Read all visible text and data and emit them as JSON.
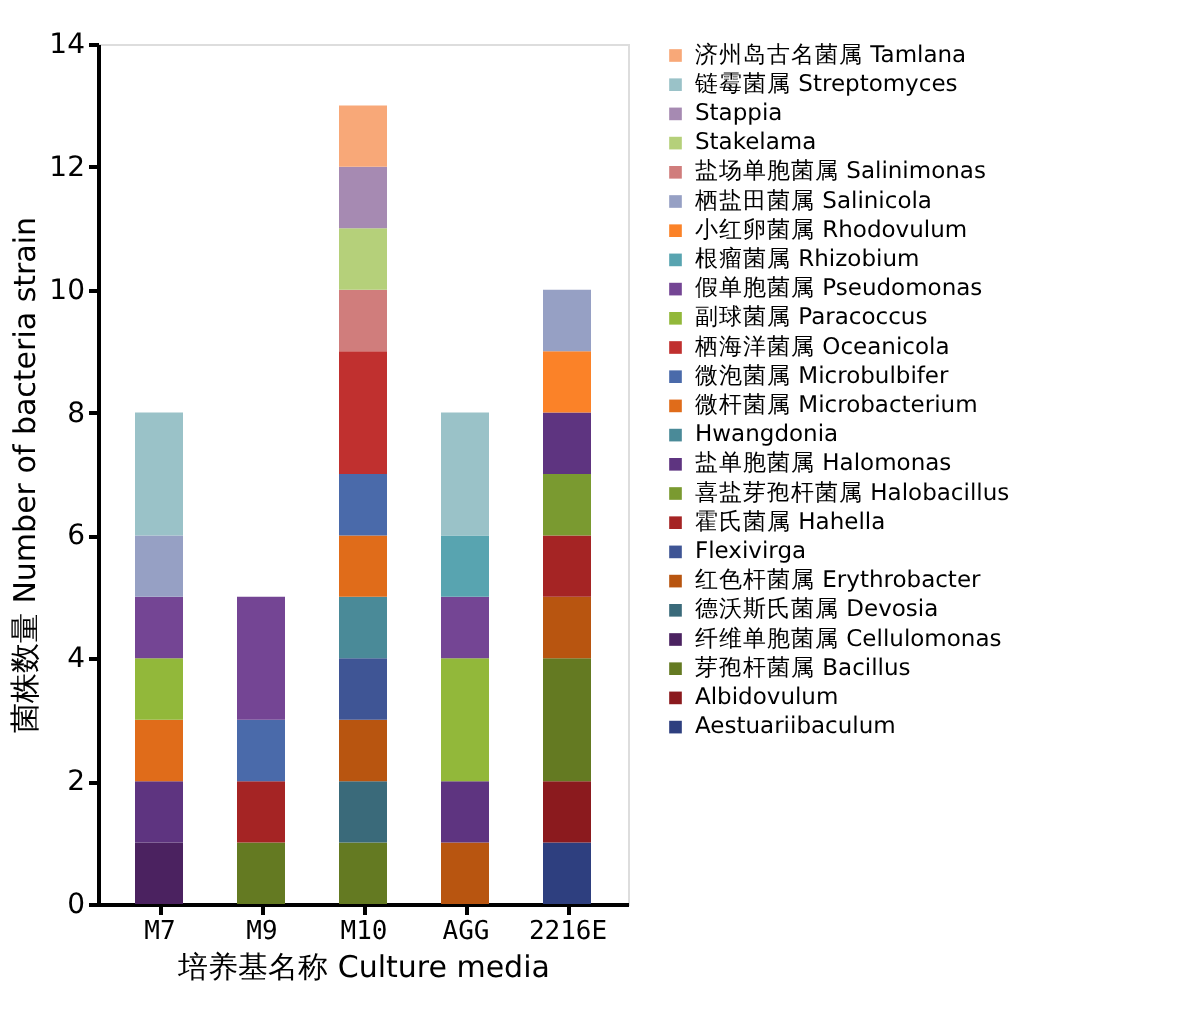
{
  "chart_data": {
    "type": "bar",
    "stacked": true,
    "xlabel": "培养基名称 Culture media",
    "ylabel": "菌株数量 Number of bacteria strain",
    "categories": [
      "M7",
      "M9",
      "M10",
      "AGG",
      "2216E"
    ],
    "ylim": [
      0,
      14
    ],
    "yticks": [
      0,
      2,
      4,
      6,
      8,
      10,
      12,
      14
    ],
    "grid": false,
    "legend": "right",
    "series": [
      {
        "name": "Aestuariibaculum",
        "color": "#2e3f7f",
        "values": [
          null,
          null,
          null,
          null,
          1
        ]
      },
      {
        "name": "Albidovulum",
        "color": "#8b1a1e",
        "values": [
          null,
          null,
          null,
          null,
          1
        ]
      },
      {
        "name": "芽孢杆菌属 Bacillus",
        "color": "#647a22",
        "values": [
          null,
          1,
          1,
          null,
          2
        ]
      },
      {
        "name": "纤维单胞菌属 Cellulomonas",
        "color": "#4b2260",
        "values": [
          1,
          null,
          null,
          null,
          null
        ]
      },
      {
        "name": "德沃斯氏菌属 Devosia",
        "color": "#3a6a7a",
        "values": [
          null,
          null,
          1,
          null,
          null
        ]
      },
      {
        "name": "红色杆菌属 Erythrobacter",
        "color": "#b85510",
        "values": [
          null,
          null,
          1,
          1,
          1
        ]
      },
      {
        "name": "Flexivirga",
        "color": "#3f5595",
        "values": [
          null,
          null,
          1,
          null,
          null
        ]
      },
      {
        "name": "霍氏菌属  Hahella",
        "color": "#a52424",
        "values": [
          null,
          1,
          null,
          null,
          1
        ]
      },
      {
        "name": "喜盐芽孢杆菌属 Halobacillus",
        "color": "#7a9a30",
        "values": [
          null,
          null,
          null,
          null,
          1
        ]
      },
      {
        "name": "盐单胞菌属 Halomonas",
        "color": "#5e3480",
        "values": [
          1,
          null,
          null,
          1,
          1
        ]
      },
      {
        "name": "Hwangdonia",
        "color": "#4a8a98",
        "values": [
          null,
          null,
          1,
          null,
          null
        ]
      },
      {
        "name": "微杆菌属 Microbacterium",
        "color": "#e06c1a",
        "values": [
          1,
          null,
          1,
          null,
          null
        ]
      },
      {
        "name": "微泡菌属 Microbulbifer",
        "color": "#4a6aaa",
        "values": [
          null,
          1,
          1,
          null,
          null
        ]
      },
      {
        "name": "栖海洋菌属 Oceanicola",
        "color": "#c0302f",
        "values": [
          null,
          null,
          2,
          null,
          null
        ]
      },
      {
        "name": "副球菌属 Paracoccus",
        "color": "#92b83a",
        "values": [
          1,
          null,
          null,
          2,
          null
        ]
      },
      {
        "name": "假单胞菌属 Pseudomonas",
        "color": "#744594",
        "values": [
          1,
          2,
          null,
          1,
          null
        ]
      },
      {
        "name": "根瘤菌属 Rhizobium",
        "color": "#58a4b0",
        "values": [
          null,
          null,
          null,
          1,
          null
        ]
      },
      {
        "name": "小红卵菌属 Rhodovulum",
        "color": "#fb8228",
        "values": [
          null,
          null,
          null,
          null,
          1
        ]
      },
      {
        "name": "栖盐田菌属 Salinicola",
        "color": "#96a0c4",
        "values": [
          1,
          null,
          null,
          null,
          1
        ]
      },
      {
        "name": "盐场单胞菌属 Salinimonas",
        "color": "#d07d7c",
        "values": [
          null,
          null,
          1,
          null,
          null
        ]
      },
      {
        "name": "Stakelama",
        "color": "#b5d07a",
        "values": [
          null,
          null,
          1,
          null,
          null
        ]
      },
      {
        "name": "Stappia",
        "color": "#a68ab2",
        "values": [
          null,
          null,
          1,
          null,
          null
        ]
      },
      {
        "name": "链霉菌属 Streptomyces",
        "color": "#9ac2c8",
        "values": [
          2,
          null,
          null,
          2,
          null
        ]
      },
      {
        "name": "济州岛古名菌属 Tamlana",
        "color": "#f8a878",
        "values": [
          null,
          null,
          1,
          null,
          null
        ]
      }
    ]
  }
}
